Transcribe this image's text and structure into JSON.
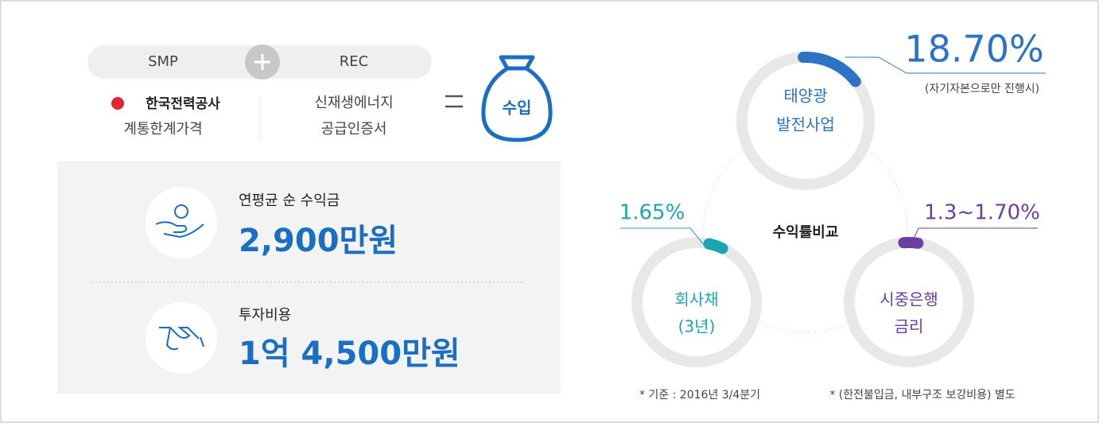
{
  "formula": {
    "smp": "SMP",
    "rec": "REC",
    "smp_org": "한국전력공사",
    "smp_desc": "계통한계가격",
    "rec_line1": "신재생에너지",
    "rec_line2": "공급인증서",
    "result": "수입"
  },
  "stats": [
    {
      "label": "연평균 순 수익금",
      "value": "2,900만원"
    },
    {
      "label": "투자비용",
      "value": "1억 4,500만원"
    }
  ],
  "comparison": {
    "title": "수익률비교",
    "items": [
      {
        "name_lines": [
          "태양광",
          "발전사업"
        ],
        "rate": "18.70%",
        "note": "(자기자본으로만 진행시)"
      },
      {
        "name_lines": [
          "회사채",
          "(3년)"
        ],
        "rate": "1.65%"
      },
      {
        "name_lines": [
          "시중은행",
          "금리"
        ],
        "rate": "1.3~1.70%"
      }
    ]
  },
  "footnotes": [
    "* 기준 : 2016년 3/4분기",
    "* (한전불입금, 내부구조 보강비용) 별도"
  ]
}
